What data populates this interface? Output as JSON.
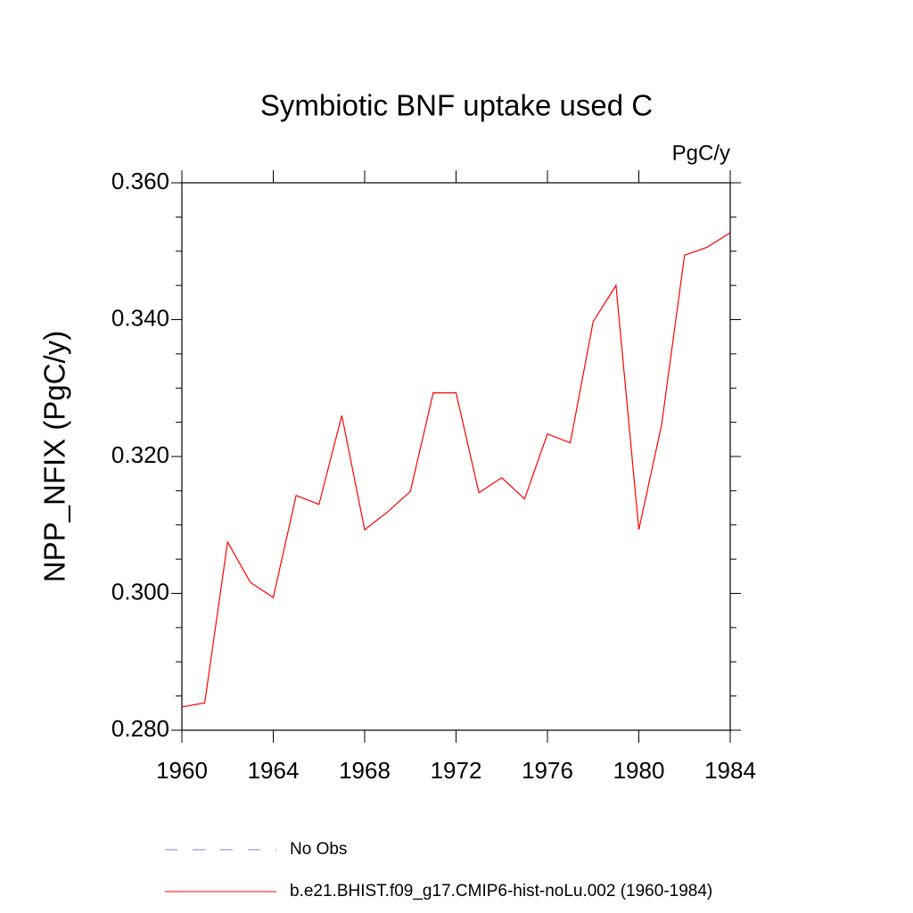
{
  "chart_data": {
    "type": "line",
    "title": "Symbiotic BNF uptake used C",
    "units": "PgC/y",
    "y_label": "NPP_NFIX  (PgC/y)",
    "x": [
      1960,
      1961,
      1962,
      1963,
      1964,
      1965,
      1966,
      1967,
      1968,
      1969,
      1970,
      1971,
      1972,
      1973,
      1974,
      1975,
      1976,
      1977,
      1978,
      1979,
      1980,
      1981,
      1982,
      1983,
      1984
    ],
    "series": [
      {
        "name": "b.e21.BHIST.f09_g17.CMIP6-hist-noLu.002 (1960-1984)",
        "color": "#ff0000",
        "values": [
          0.2834,
          0.284,
          0.3075,
          0.3016,
          0.2994,
          0.3143,
          0.313,
          0.326,
          0.3093,
          0.3119,
          0.3149,
          0.3293,
          0.3293,
          0.3147,
          0.3169,
          0.3138,
          0.3233,
          0.322,
          0.3397,
          0.345,
          0.3093,
          0.3247,
          0.3494,
          0.3506,
          0.3527
        ]
      }
    ],
    "legend": [
      {
        "name": "No Obs",
        "color": "#8080c0",
        "style": "dashed"
      }
    ],
    "xlim": [
      1960,
      1984
    ],
    "xticks": [
      1960,
      1964,
      1968,
      1972,
      1976,
      1980,
      1984
    ],
    "ylim": [
      0.28,
      0.36
    ],
    "yticks": [
      {
        "value": 0.28,
        "label": "0.280"
      },
      {
        "value": 0.3,
        "label": "0.300"
      },
      {
        "value": 0.32,
        "label": "0.320"
      },
      {
        "value": 0.34,
        "label": "0.340"
      },
      {
        "value": 0.36,
        "label": "0.360"
      }
    ],
    "yminor_step": 0.005,
    "grid": false
  }
}
